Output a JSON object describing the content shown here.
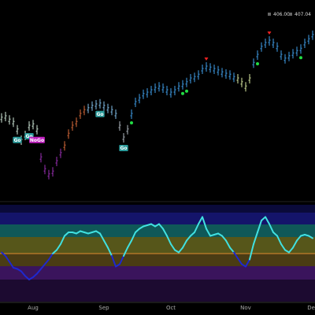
{
  "header": {
    "price_a": "406.00",
    "price_b": "407.04"
  },
  "chart_data": [
    {
      "type": "ohlc",
      "categories": [
        null,
        null,
        null,
        null,
        null,
        null,
        null,
        null,
        "Aug",
        null,
        null,
        null,
        null,
        null,
        null,
        null,
        null,
        null,
        null,
        null,
        null,
        null,
        null,
        null,
        null,
        null,
        "Sep",
        null,
        null,
        null,
        null,
        null,
        null,
        null,
        null,
        null,
        null,
        null,
        null,
        null,
        null,
        null,
        null,
        "Oct",
        null,
        null,
        null,
        null,
        null,
        null,
        null,
        null,
        null,
        null,
        null,
        null,
        null,
        null,
        null,
        null,
        null,
        null,
        "Nov",
        null,
        null,
        null,
        null,
        null,
        null,
        null,
        null,
        null,
        null,
        null,
        null,
        null,
        null,
        null,
        null,
        "Dec"
      ],
      "values": [
        386.7,
        387.0,
        386.3,
        385.8,
        384.2,
        382.0,
        383.0,
        385.0,
        385.3,
        384.2,
        378.3,
        375.8,
        374.7,
        375.3,
        377.5,
        379.2,
        380.8,
        383.3,
        385.0,
        385.8,
        387.5,
        388.3,
        388.7,
        389.2,
        389.5,
        389.7,
        389.2,
        388.7,
        388.3,
        387.5,
        385.0,
        382.5,
        384.2,
        387.5,
        390.0,
        390.8,
        391.7,
        392.0,
        392.5,
        393.0,
        393.3,
        393.0,
        392.5,
        392.0,
        392.5,
        393.3,
        393.7,
        394.2,
        395.0,
        395.3,
        395.8,
        397.0,
        397.5,
        397.3,
        397.0,
        396.7,
        396.3,
        396.0,
        395.8,
        395.3,
        395.0,
        394.2,
        393.3,
        395.0,
        398.3,
        400.0,
        401.7,
        402.5,
        403.0,
        402.5,
        401.7,
        400.0,
        399.2,
        399.7,
        400.3,
        400.8,
        401.3,
        402.5,
        403.3,
        404.2
      ],
      "colors": [
        "#cfe8d8",
        "#cfe8d8",
        "#cfe8d8",
        "#cfe8d8",
        "#cfe8d8",
        "#cfe8d8",
        "#cfe8d8",
        "#cfe8d8",
        "#cfe8d8",
        "#cfe8d8",
        "#9a2fb4",
        "#9a2fb4",
        "#9a2fb4",
        "#9a2fb4",
        "#9a2fb4",
        "#9a2fb4",
        "#d86a3a",
        "#d86a3a",
        "#d86a3a",
        "#d86a3a",
        "#d86a3a",
        "#d86a3a",
        "#7fbde6",
        "#7fbde6",
        "#7fbde6",
        "#7fbde6",
        "#7fbde6",
        "#7fbde6",
        "#7fbde6",
        "#7fbde6",
        "#b0b8c0",
        "#b0b8c0",
        "#b0b8c0",
        "#3f9ee8",
        "#3f9ee8",
        "#3f9ee8",
        "#3f9ee8",
        "#3f9ee8",
        "#3f9ee8",
        "#3f9ee8",
        "#3f9ee8",
        "#3f9ee8",
        "#3f9ee8",
        "#3f9ee8",
        "#3f9ee8",
        "#3f9ee8",
        "#3f9ee8",
        "#3f9ee8",
        "#3f9ee8",
        "#3f9ee8",
        "#3f9ee8",
        "#3f9ee8",
        "#3f9ee8",
        "#3f9ee8",
        "#3f9ee8",
        "#3f9ee8",
        "#3f9ee8",
        "#3f9ee8",
        "#3f9ee8",
        "#3f9ee8",
        "#d8e8a0",
        "#d8e8a0",
        "#d8e8a0",
        "#d8e8a0",
        "#3f9ee8",
        "#3f9ee8",
        "#3f9ee8",
        "#3f9ee8",
        "#3f9ee8",
        "#3f9ee8",
        "#3f9ee8",
        "#3f9ee8",
        "#3f9ee8",
        "#3f9ee8",
        "#3f9ee8",
        "#3f9ee8",
        "#3f9ee8",
        "#3f9ee8",
        "#3f9ee8",
        "#3f9ee8"
      ],
      "ylim": [
        370,
        410
      ],
      "annotations": [
        {
          "text": "Go",
          "index": 4,
          "color": "#2a9a9a"
        },
        {
          "text": "Go",
          "index": 7,
          "color": "#2a9a9a"
        },
        {
          "text": "NoGo",
          "index": 9,
          "color": "#c020c0"
        },
        {
          "text": "Go",
          "index": 25,
          "color": "#2a9a9a"
        },
        {
          "text": "Go",
          "index": 31,
          "color": "#2a9a9a"
        }
      ],
      "signals": [
        {
          "index": 33,
          "kind": "up",
          "color": "#22dd44"
        },
        {
          "index": 46,
          "kind": "up",
          "color": "#22dd44"
        },
        {
          "index": 47,
          "kind": "up",
          "color": "#22dd44"
        },
        {
          "index": 65,
          "kind": "up",
          "color": "#22dd44"
        },
        {
          "index": 76,
          "kind": "up",
          "color": "#22dd44"
        },
        {
          "index": 52,
          "kind": "down",
          "color": "#ee2222"
        },
        {
          "index": 68,
          "kind": "down",
          "color": "#ee2222"
        }
      ]
    },
    {
      "type": "line",
      "values": [
        0.1,
        -0.2,
        -0.7,
        -1.2,
        -1.3,
        -1.5,
        -1.9,
        -2.2,
        -2.0,
        -1.7,
        -1.3,
        -0.9,
        -0.5,
        0,
        0.3,
        0.8,
        1.5,
        1.8,
        1.8,
        1.7,
        1.9,
        1.8,
        1.7,
        1.8,
        1.9,
        1.7,
        1.1,
        0.5,
        -0.2,
        -1.1,
        -0.9,
        -0.2,
        0.5,
        1.1,
        1.8,
        2.1,
        2.3,
        2.4,
        2.5,
        2.3,
        2.5,
        2.1,
        1.5,
        0.8,
        0.3,
        0.1,
        0.5,
        1.1,
        1.5,
        1.8,
        2.5,
        3.1,
        2.1,
        1.5,
        1.6,
        1.7,
        1.5,
        1.1,
        0.5,
        0.1,
        -0.4,
        -0.9,
        -1.1,
        -0.5,
        0.8,
        1.8,
        2.8,
        3.1,
        2.5,
        1.8,
        1.5,
        0.8,
        0.3,
        0.1,
        0.5,
        1.1,
        1.5,
        1.6,
        1.5,
        1.3
      ],
      "ylim": [
        -4,
        4
      ],
      "colors": {
        "positive": "#40e0e0",
        "negative": "#1e28d0"
      }
    }
  ]
}
